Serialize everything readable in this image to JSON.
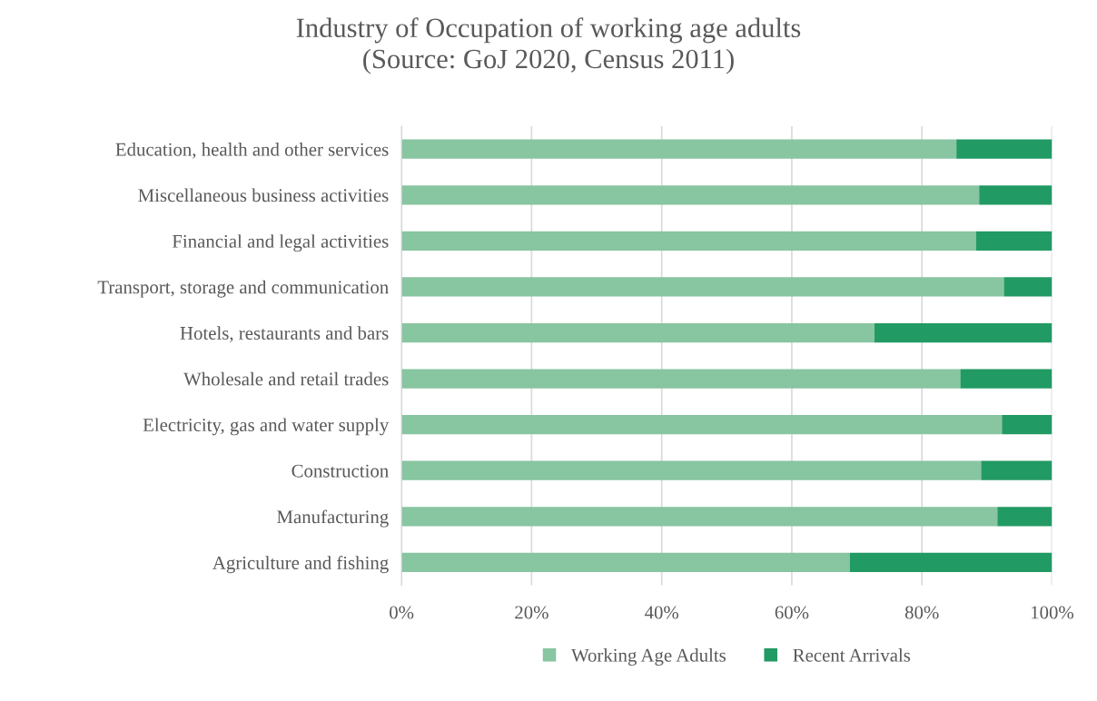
{
  "chart_data": {
    "type": "bar",
    "orientation": "horizontal",
    "stacked": true,
    "title": "Industry of Occupation of working age adults\n(Source: GoJ 2020, Census 2011)",
    "categories": [
      "Education, health and other services",
      "Miscellaneous business activities",
      "Financial and legal activities",
      "Transport, storage and communication",
      "Hotels, restaurants and bars",
      "Wholesale and retail trades",
      "Electricity, gas and water supply",
      "Construction",
      "Manufacturing",
      "Agriculture and fishing"
    ],
    "series": [
      {
        "name": "Working Age Adults",
        "color": "#88c5a1",
        "values": [
          85.3,
          88.8,
          88.3,
          92.6,
          72.7,
          85.9,
          92.3,
          89.1,
          91.6,
          68.9
        ]
      },
      {
        "name": "Recent Arrivals",
        "color": "#229a63",
        "values": [
          14.7,
          11.2,
          11.7,
          7.4,
          27.3,
          14.1,
          7.7,
          10.9,
          8.4,
          31.1
        ]
      }
    ],
    "xlim": [
      0,
      100
    ],
    "xticks": [
      {
        "value": 0,
        "label": "0%"
      },
      {
        "value": 20,
        "label": "20%"
      },
      {
        "value": 40,
        "label": "40%"
      },
      {
        "value": 60,
        "label": "60%"
      },
      {
        "value": 80,
        "label": "80%"
      },
      {
        "value": 100,
        "label": "100%"
      }
    ],
    "grid": "x",
    "legend": "bottom"
  }
}
